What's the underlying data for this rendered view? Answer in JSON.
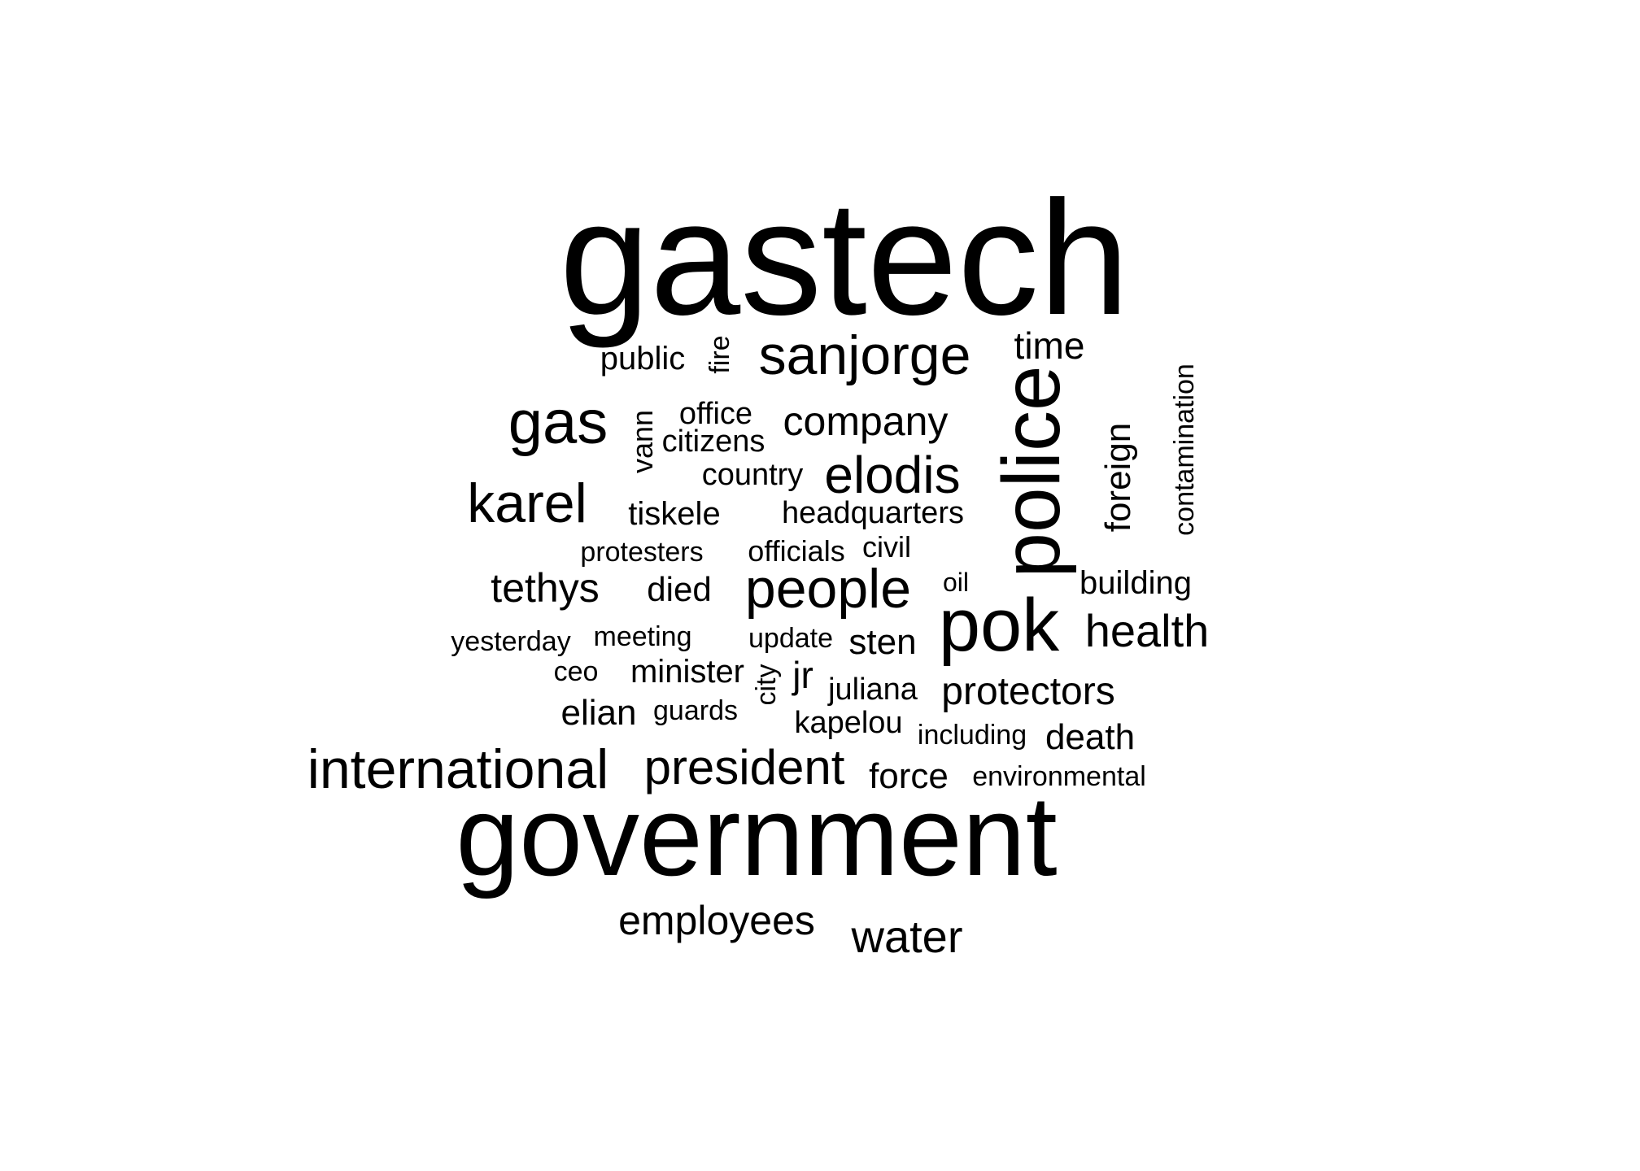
{
  "words": [
    {
      "text": "gastech",
      "color": "#000000"
    },
    {
      "text": "government",
      "color": "#000000"
    },
    {
      "text": "police",
      "color": "#000000"
    },
    {
      "text": "pok",
      "color": "#000000"
    },
    {
      "text": "sanjorge",
      "color": "#000000"
    },
    {
      "text": "gas",
      "color": "#000000"
    },
    {
      "text": "karel",
      "color": "#000000"
    },
    {
      "text": "international",
      "color": "#000000"
    },
    {
      "text": "people",
      "color": "#000000"
    },
    {
      "text": "president",
      "color": "#000000"
    },
    {
      "text": "elodis",
      "color": "#000000"
    },
    {
      "text": "health",
      "color": "#000000"
    },
    {
      "text": "water",
      "color": "#000000"
    },
    {
      "text": "company",
      "color": "#000000"
    },
    {
      "text": "tethys",
      "color": "#000000"
    },
    {
      "text": "employees",
      "color": "#000000"
    },
    {
      "text": "protectors",
      "color": "#000000"
    },
    {
      "text": "time",
      "color": "#000000"
    },
    {
      "text": "sten",
      "color": "#000000"
    },
    {
      "text": "foreign",
      "color": "#000000"
    },
    {
      "text": "death",
      "color": "#000000"
    },
    {
      "text": "force",
      "color": "#000000"
    },
    {
      "text": "tiskele",
      "color": "#000000"
    },
    {
      "text": "died",
      "color": "#000000"
    },
    {
      "text": "elian",
      "color": "#000000"
    },
    {
      "text": "jr",
      "color": "#000000"
    },
    {
      "text": "public",
      "color": "#000000"
    },
    {
      "text": "building",
      "color": "#000000"
    },
    {
      "text": "minister",
      "color": "#000000"
    },
    {
      "text": "office",
      "color": "#000000"
    },
    {
      "text": "citizens",
      "color": "#000000"
    },
    {
      "text": "country",
      "color": "#000000"
    },
    {
      "text": "headquarters",
      "color": "#000000"
    },
    {
      "text": "kapelou",
      "color": "#000000"
    },
    {
      "text": "juliana",
      "color": "#000000"
    },
    {
      "text": "contamination",
      "color": "#000000"
    },
    {
      "text": "vann",
      "color": "#000000"
    },
    {
      "text": "fire",
      "color": "#000000"
    },
    {
      "text": "officials",
      "color": "#000000"
    },
    {
      "text": "civil",
      "color": "#000000"
    },
    {
      "text": "protesters",
      "color": "#000000"
    },
    {
      "text": "meeting",
      "color": "#000000"
    },
    {
      "text": "yesterday",
      "color": "#000000"
    },
    {
      "text": "update",
      "color": "#000000"
    },
    {
      "text": "guards",
      "color": "#000000"
    },
    {
      "text": "including",
      "color": "#000000"
    },
    {
      "text": "environmental",
      "color": "#000000"
    },
    {
      "text": "ceo",
      "color": "#000000"
    },
    {
      "text": "oil",
      "color": "#000000"
    },
    {
      "text": "city",
      "color": "#000000"
    }
  ]
}
